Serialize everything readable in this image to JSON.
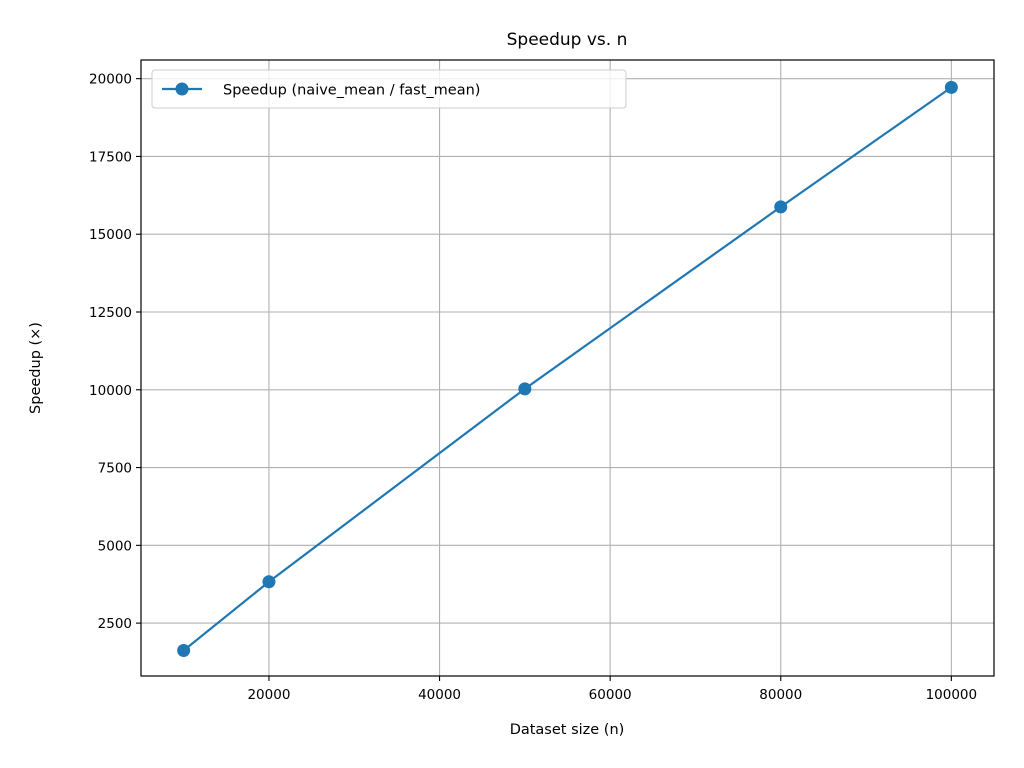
{
  "chart_data": {
    "type": "line",
    "title": "Speedup vs. n",
    "xlabel": "Dataset size (n)",
    "ylabel": "Speedup (×)",
    "xlim": [
      5000,
      105000
    ],
    "ylim": [
      800,
      20600
    ],
    "xticks": [
      20000,
      40000,
      60000,
      80000,
      100000
    ],
    "yticks": [
      2500,
      5000,
      7500,
      10000,
      12500,
      15000,
      17500,
      20000
    ],
    "grid": true,
    "legend_position": "top-left",
    "series": [
      {
        "name": "Speedup (naive_mean / fast_mean)",
        "color": "#1f77b4",
        "marker": "circle",
        "x": [
          10000,
          20000,
          50000,
          80000,
          100000
        ],
        "y": [
          1620,
          3830,
          10030,
          15880,
          19720
        ]
      }
    ]
  }
}
